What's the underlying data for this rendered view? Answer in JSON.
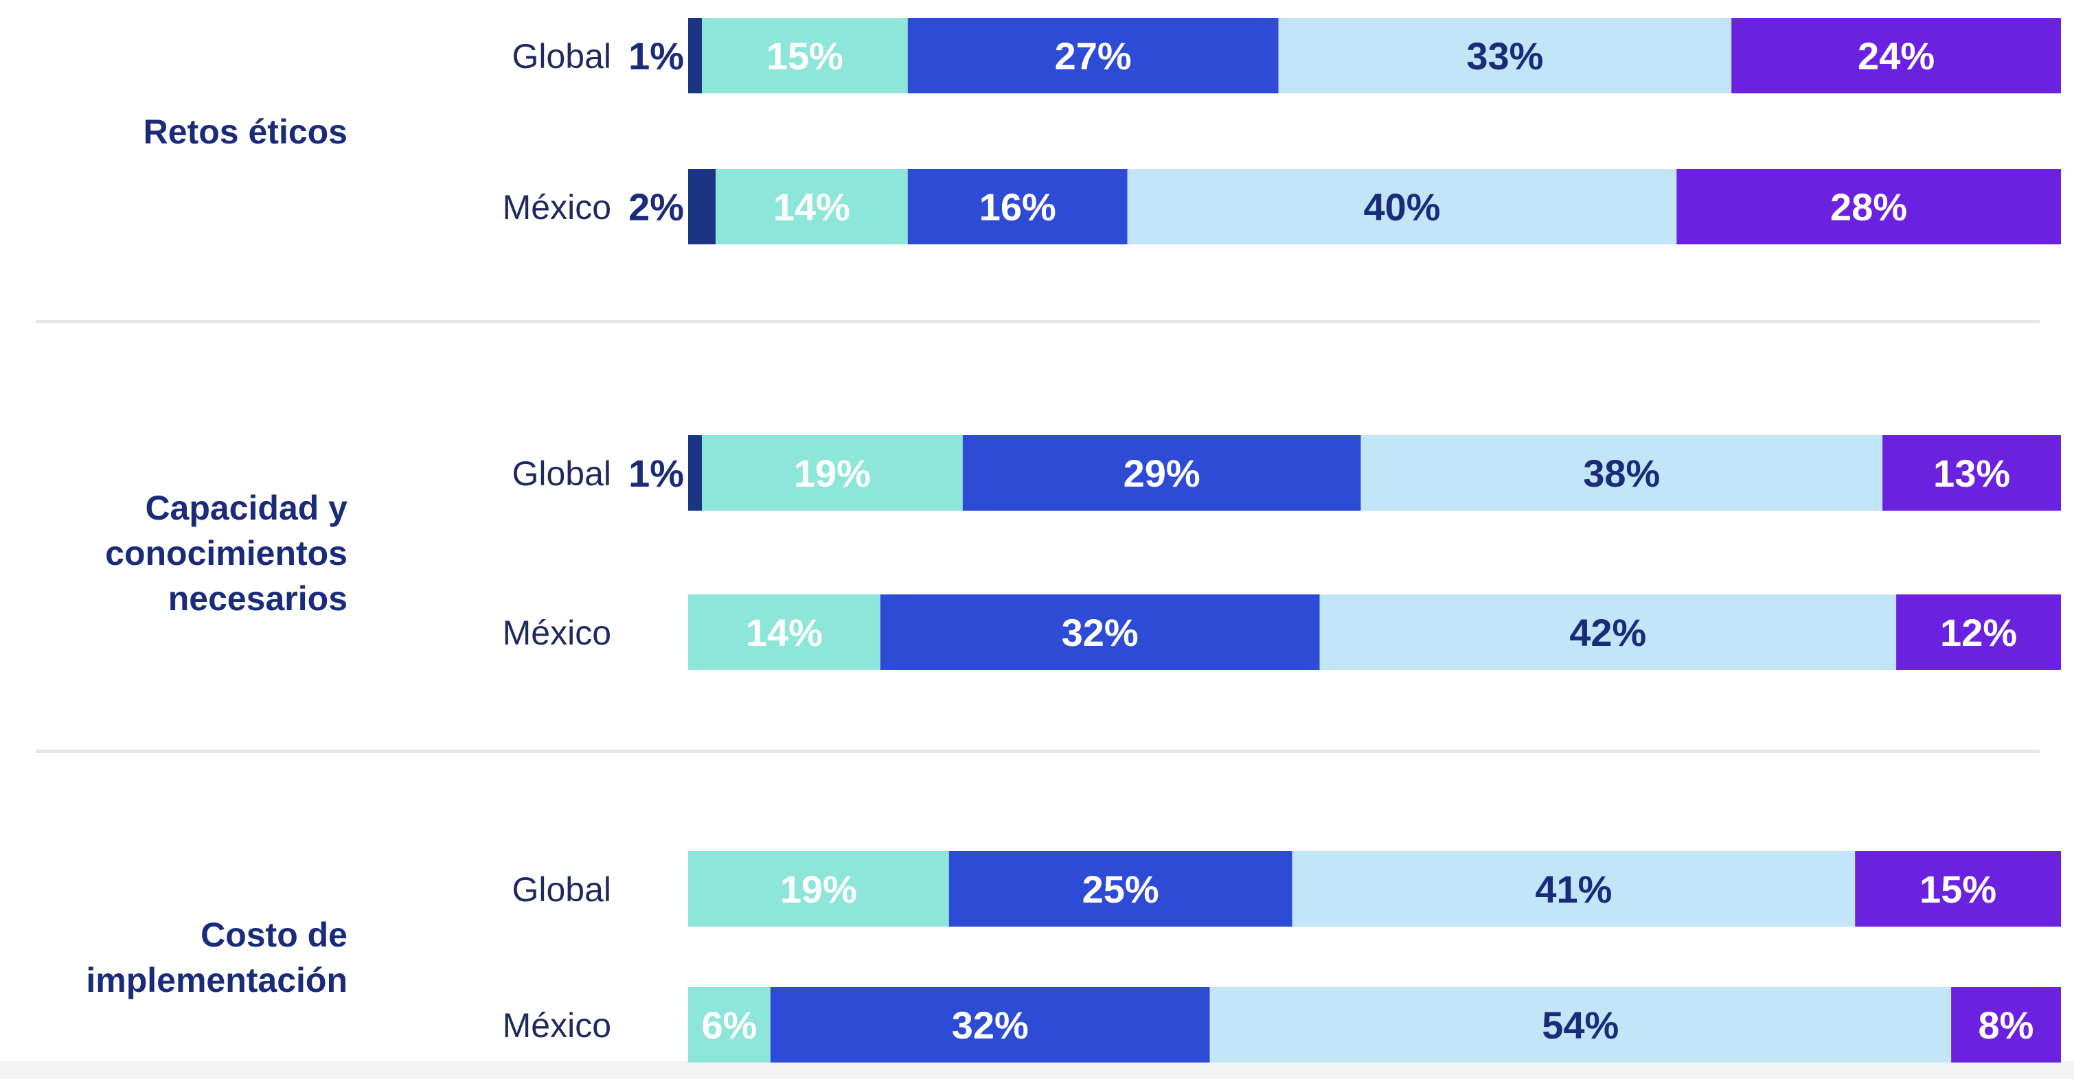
{
  "chart_data": {
    "type": "bar",
    "orientation": "horizontal",
    "stacked": true,
    "percent_scale": true,
    "segment_colors": [
      "#1b3585",
      "#8ee6da",
      "#2e4bd6",
      "#c2e5f8",
      "#6b21e0"
    ],
    "segment_text_colors": [
      "#ffffff",
      "#ffffff",
      "#ffffff",
      "#1a2b7a",
      "#ffffff"
    ],
    "groups": [
      {
        "label": "Retos éticos",
        "rows": [
          {
            "label": "Global",
            "values": [
              1,
              15,
              27,
              33,
              24
            ],
            "labels": [
              "1%",
              "15%",
              "27%",
              "33%",
              "24%"
            ]
          },
          {
            "label": "México",
            "values": [
              2,
              14,
              16,
              40,
              28
            ],
            "labels": [
              "2%",
              "14%",
              "16%",
              "40%",
              "28%"
            ]
          }
        ]
      },
      {
        "label": "Capacidad y conocimientos necesarios",
        "rows": [
          {
            "label": "Global",
            "values": [
              1,
              19,
              29,
              38,
              13
            ],
            "labels": [
              "1%",
              "19%",
              "29%",
              "38%",
              "13%"
            ]
          },
          {
            "label": "México",
            "values": [
              0,
              14,
              32,
              42,
              12
            ],
            "labels": [
              "",
              "14%",
              "32%",
              "42%",
              "12%"
            ]
          }
        ]
      },
      {
        "label": "Costo de implementación",
        "rows": [
          {
            "label": "Global",
            "values": [
              0,
              19,
              25,
              41,
              15
            ],
            "labels": [
              "",
              "19%",
              "25%",
              "41%",
              "15%"
            ]
          },
          {
            "label": "México",
            "values": [
              0,
              6,
              32,
              54,
              8
            ],
            "labels": [
              "",
              "6%",
              "32%",
              "54%",
              "8%"
            ]
          }
        ]
      }
    ]
  }
}
